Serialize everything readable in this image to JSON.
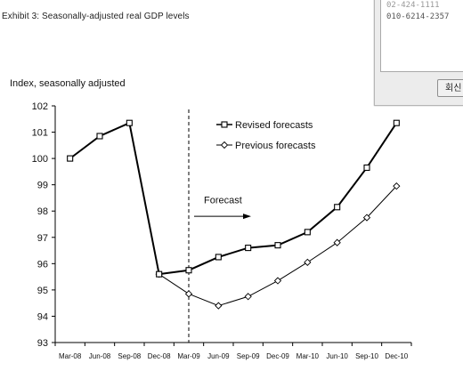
{
  "exhibit_title": "Exhibit 3: Seasonally-adjusted real GDP levels",
  "popup": {
    "line1": "02-424-1111",
    "line2": "010-6214-2357",
    "button_label": "회신"
  },
  "chart_data": {
    "type": "line",
    "title": "",
    "ylabel": "Index, seasonally adjusted",
    "xlabel": "",
    "ylim": [
      93,
      102
    ],
    "yticks": [
      93,
      94,
      95,
      96,
      97,
      98,
      99,
      100,
      101,
      102
    ],
    "categories": [
      "Mar-08",
      "Jun-08",
      "Sep-08",
      "Dec-08",
      "Mar-09",
      "Jun-09",
      "Sep-09",
      "Dec-09",
      "Mar-10",
      "Jun-10",
      "Sep-10",
      "Dec-10"
    ],
    "legend_position": "top-right",
    "series": [
      {
        "name": "Revised forecasts",
        "marker": "square",
        "color": "#000000",
        "values": [
          100.0,
          100.85,
          101.35,
          95.6,
          95.75,
          96.25,
          96.6,
          96.7,
          97.2,
          98.15,
          99.65,
          101.35
        ]
      },
      {
        "name": "Previous forecasts",
        "marker": "diamond",
        "color": "#000000",
        "values": [
          null,
          null,
          null,
          95.6,
          94.85,
          94.4,
          94.75,
          95.35,
          96.05,
          96.8,
          97.75,
          98.95
        ]
      }
    ],
    "annotation": {
      "label": "Forecast",
      "at_category": "Mar-09"
    }
  }
}
